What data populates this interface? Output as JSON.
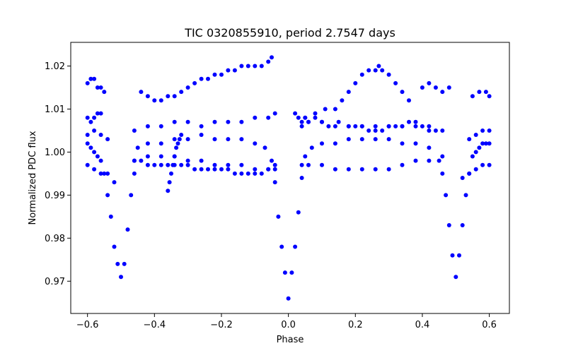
{
  "chart_data": {
    "type": "scatter",
    "title": "TIC 0320855910, period 2.7547 days",
    "xlabel": "Phase",
    "ylabel": "Normalized PDC flux",
    "xlim": [
      -0.65,
      0.66
    ],
    "ylim": [
      0.9625,
      1.0255
    ],
    "xticks": [
      -0.6,
      -0.4,
      -0.2,
      0.0,
      0.2,
      0.4,
      0.6
    ],
    "xtick_labels": [
      "−0.6",
      "−0.4",
      "−0.2",
      "0.0",
      "0.2",
      "0.4",
      "0.6"
    ],
    "yticks": [
      0.97,
      0.98,
      0.99,
      1.0,
      1.01,
      1.02
    ],
    "ytick_labels": [
      "0.97",
      "0.98",
      "0.99",
      "1.00",
      "1.01",
      "1.02"
    ],
    "grid": false,
    "marker_color": "#0000ff",
    "series": [
      {
        "x": [
          -0.6,
          -0.59,
          -0.58,
          -0.57,
          -0.56,
          -0.55,
          -0.54,
          -0.53,
          -0.52,
          -0.51,
          -0.5,
          -0.49,
          -0.48,
          -0.47,
          -0.46,
          -0.45,
          -0.42,
          -0.38,
          -0.34,
          -0.3,
          -0.26,
          -0.22,
          -0.18,
          -0.14,
          -0.1,
          -0.07,
          -0.05,
          -0.04,
          -0.03,
          -0.02,
          -0.01,
          0.0,
          0.01,
          0.02,
          0.03,
          0.04,
          0.05,
          0.07,
          0.1,
          0.14,
          0.18,
          0.22,
          0.26,
          0.3,
          0.34,
          0.38,
          0.42,
          0.45,
          0.46,
          0.47,
          0.48,
          0.49,
          0.5,
          0.51,
          0.52,
          0.53,
          0.54,
          0.55,
          0.56,
          0.57,
          0.58,
          0.59,
          0.6
        ],
        "y": [
          1.002,
          1.001,
          1.0,
          0.999,
          0.998,
          0.995,
          0.99,
          0.985,
          0.978,
          0.974,
          0.971,
          0.974,
          0.982,
          0.99,
          0.995,
          1.001,
          1.002,
          1.002,
          1.003,
          1.003,
          1.004,
          1.003,
          1.003,
          1.003,
          1.002,
          1.001,
          0.998,
          0.993,
          0.985,
          0.978,
          0.972,
          0.966,
          0.972,
          0.978,
          0.986,
          0.994,
          0.999,
          1.001,
          1.002,
          1.002,
          1.003,
          1.003,
          1.003,
          1.003,
          1.002,
          1.002,
          1.001,
          0.998,
          0.995,
          0.99,
          0.983,
          0.976,
          0.971,
          0.976,
          0.983,
          0.99,
          0.995,
          0.999,
          1.0,
          1.001,
          1.002,
          1.002,
          1.002
        ]
      },
      {
        "x": [
          -0.6,
          -0.58,
          -0.56,
          -0.54,
          -0.52,
          -0.46,
          -0.42,
          -0.38,
          -0.34,
          -0.3,
          -0.26,
          -0.22,
          -0.18,
          -0.14,
          -0.1,
          -0.06,
          -0.04,
          0.04,
          0.06,
          0.1,
          0.14,
          0.18,
          0.22,
          0.26,
          0.3,
          0.34,
          0.38,
          0.42,
          0.46,
          0.52,
          0.54,
          0.56,
          0.58,
          0.6
        ],
        "y": [
          0.997,
          0.996,
          0.995,
          0.995,
          0.993,
          0.998,
          0.999,
          0.999,
          0.999,
          0.998,
          0.998,
          0.997,
          0.997,
          0.997,
          0.996,
          0.996,
          0.996,
          0.997,
          0.997,
          0.997,
          0.996,
          0.996,
          0.996,
          0.996,
          0.996,
          0.997,
          0.998,
          0.998,
          0.999,
          0.994,
          0.995,
          0.996,
          0.997,
          0.997
        ]
      },
      {
        "x": [
          -0.6,
          -0.58,
          -0.56,
          -0.54,
          -0.46,
          -0.42,
          -0.38,
          -0.34,
          -0.3,
          -0.26,
          -0.22,
          -0.18,
          -0.14,
          -0.1,
          -0.06,
          -0.04,
          0.04,
          0.06,
          0.1,
          0.14,
          0.18,
          0.22,
          0.26,
          0.3,
          0.34,
          0.38,
          0.42,
          0.46,
          0.54,
          0.56,
          0.58,
          0.6
        ],
        "y": [
          1.004,
          1.005,
          1.004,
          1.003,
          1.005,
          1.006,
          1.006,
          1.007,
          1.007,
          1.006,
          1.007,
          1.007,
          1.007,
          1.008,
          1.008,
          1.009,
          1.006,
          1.007,
          1.007,
          1.006,
          1.006,
          1.006,
          1.006,
          1.006,
          1.006,
          1.006,
          1.005,
          1.005,
          1.003,
          1.004,
          1.005,
          1.005
        ]
      },
      {
        "x": [
          -0.6,
          -0.59,
          -0.58,
          -0.57,
          -0.56,
          -0.55,
          -0.44,
          -0.42,
          -0.4,
          -0.38,
          -0.36,
          -0.34,
          -0.32,
          -0.3,
          -0.28,
          -0.26,
          -0.24,
          -0.22,
          -0.2,
          -0.18,
          -0.16,
          -0.14,
          -0.12,
          -0.1,
          -0.08,
          -0.06,
          -0.05
        ],
        "y": [
          1.016,
          1.017,
          1.017,
          1.015,
          1.015,
          1.014,
          1.014,
          1.013,
          1.012,
          1.012,
          1.013,
          1.013,
          1.014,
          1.015,
          1.016,
          1.017,
          1.017,
          1.018,
          1.018,
          1.019,
          1.019,
          1.02,
          1.02,
          1.02,
          1.02,
          1.021,
          1.022
        ]
      },
      {
        "x": [
          0.05,
          0.08,
          0.11,
          0.14,
          0.16,
          0.18,
          0.2,
          0.22,
          0.24,
          0.26,
          0.27,
          0.28,
          0.3,
          0.32,
          0.34,
          0.36,
          0.4,
          0.42,
          0.44,
          0.46,
          0.48,
          0.55,
          0.57,
          0.59,
          0.6
        ],
        "y": [
          1.008,
          1.009,
          1.01,
          1.01,
          1.012,
          1.014,
          1.016,
          1.018,
          1.019,
          1.019,
          1.02,
          1.019,
          1.018,
          1.016,
          1.014,
          1.012,
          1.015,
          1.016,
          1.015,
          1.014,
          1.015,
          1.013,
          1.014,
          1.014,
          1.013
        ]
      },
      {
        "x": [
          -0.6,
          -0.59,
          -0.58,
          -0.57,
          -0.56,
          -0.36,
          -0.355,
          -0.35,
          -0.345,
          -0.34,
          -0.335,
          -0.33,
          -0.325,
          -0.32
        ],
        "y": [
          1.008,
          1.007,
          1.008,
          1.009,
          1.009,
          0.991,
          0.993,
          0.995,
          0.997,
          0.999,
          1.001,
          1.002,
          1.003,
          1.004
        ]
      },
      {
        "x": [
          0.02,
          0.03,
          0.04,
          0.05,
          0.06,
          0.08,
          0.1,
          0.12,
          0.15,
          0.18,
          0.2,
          0.22,
          0.24,
          0.26,
          0.28,
          0.3,
          0.32,
          0.34,
          0.36,
          0.38,
          0.4,
          0.42,
          0.44
        ],
        "y": [
          1.009,
          1.008,
          1.007,
          1.008,
          1.007,
          1.008,
          1.007,
          1.006,
          1.007,
          1.006,
          1.006,
          1.006,
          1.005,
          1.005,
          1.005,
          1.006,
          1.006,
          1.006,
          1.007,
          1.007,
          1.006,
          1.006,
          1.005
        ]
      },
      {
        "x": [
          -0.46,
          -0.44,
          -0.42,
          -0.4,
          -0.38,
          -0.36,
          -0.34,
          -0.32,
          -0.3,
          -0.28,
          -0.26,
          -0.24,
          -0.22,
          -0.2,
          -0.18,
          -0.16,
          -0.14,
          -0.12,
          -0.1,
          -0.08,
          -0.06,
          -0.04
        ],
        "y": [
          0.998,
          0.998,
          0.997,
          0.997,
          0.997,
          0.997,
          0.997,
          0.997,
          0.997,
          0.996,
          0.996,
          0.996,
          0.996,
          0.996,
          0.996,
          0.995,
          0.995,
          0.995,
          0.995,
          0.995,
          0.996,
          0.997
        ]
      }
    ]
  }
}
